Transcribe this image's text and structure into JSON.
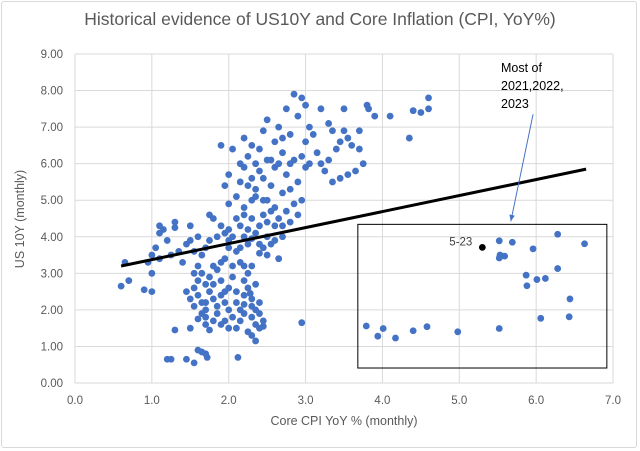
{
  "chart_data": {
    "type": "scatter",
    "title": "Historical evidence of US10Y and Core Inflation (CPI, YoY%)",
    "xlabel": "Core CPI YoY % (monthly)",
    "ylabel": "US 10Y (monthly)",
    "xlim": [
      0,
      7
    ],
    "ylim": [
      0,
      9
    ],
    "x_ticks": [
      "0.0",
      "1.0",
      "2.0",
      "3.0",
      "4.0",
      "5.0",
      "6.0",
      "7.0"
    ],
    "y_ticks": [
      "0.00",
      "1.00",
      "2.00",
      "3.00",
      "4.00",
      "5.00",
      "6.00",
      "7.00",
      "8.00",
      "9.00"
    ],
    "grid": true,
    "legend": "none",
    "colors": {
      "points": "#4472C4",
      "highlight": "#000000",
      "trendline": "#000000",
      "grid": "#d9d9d9"
    },
    "trendline": {
      "type": "linear",
      "x": [
        0.6,
        6.65
      ],
      "y": [
        3.2,
        5.85
      ]
    },
    "highlight_point": {
      "label": "5-23",
      "x": 5.3,
      "y": 3.71
    },
    "annotation": {
      "lines": [
        "Most of",
        "2021,2022,",
        "2023"
      ],
      "box": {
        "x": [
          3.68,
          6.92
        ],
        "y": [
          0.41,
          4.34
        ]
      },
      "arrow_from": [
        5.96,
        7.35
      ],
      "arrow_to": [
        5.67,
        4.42
      ]
    },
    "points": [
      [
        0.6,
        2.65
      ],
      [
        0.65,
        3.3
      ],
      [
        0.7,
        2.8
      ],
      [
        0.9,
        2.55
      ],
      [
        1.0,
        2.5
      ],
      [
        1.0,
        3.0
      ],
      [
        0.95,
        3.3
      ],
      [
        1.0,
        3.5
      ],
      [
        1.05,
        3.7
      ],
      [
        1.1,
        3.4
      ],
      [
        1.1,
        4.3
      ],
      [
        1.1,
        4.1
      ],
      [
        1.15,
        4.2
      ],
      [
        1.2,
        3.9
      ],
      [
        1.25,
        3.5
      ],
      [
        1.3,
        4.4
      ],
      [
        1.3,
        4.25
      ],
      [
        1.35,
        3.6
      ],
      [
        1.4,
        3.3
      ],
      [
        1.45,
        3.8
      ],
      [
        1.5,
        3.9
      ],
      [
        1.5,
        4.3
      ],
      [
        1.55,
        3.6
      ],
      [
        1.6,
        3.2
      ],
      [
        1.55,
        3.0
      ],
      [
        1.6,
        4.0
      ],
      [
        1.65,
        3.5
      ],
      [
        1.7,
        3.7
      ],
      [
        1.75,
        4.6
      ],
      [
        1.8,
        4.5
      ],
      [
        1.75,
        3.9
      ],
      [
        1.8,
        3.2
      ],
      [
        1.85,
        4.0
      ],
      [
        1.9,
        4.3
      ],
      [
        1.95,
        4.1
      ],
      [
        2.0,
        3.9
      ],
      [
        1.2,
        0.65
      ],
      [
        1.25,
        0.65
      ],
      [
        1.45,
        0.65
      ],
      [
        1.55,
        0.55
      ],
      [
        1.65,
        0.85
      ],
      [
        1.7,
        0.8
      ],
      [
        1.72,
        0.7
      ],
      [
        1.6,
        0.9
      ],
      [
        1.3,
        1.45
      ],
      [
        1.5,
        1.5
      ],
      [
        2.12,
        0.7
      ],
      [
        2.35,
        1.15
      ],
      [
        2.95,
        1.65
      ],
      [
        1.55,
        2.6
      ],
      [
        1.6,
        2.4
      ],
      [
        1.65,
        2.2
      ],
      [
        1.7,
        2.0
      ],
      [
        1.65,
        1.9
      ],
      [
        1.7,
        1.8
      ],
      [
        1.75,
        2.5
      ],
      [
        1.8,
        2.7
      ],
      [
        1.8,
        2.3
      ],
      [
        1.85,
        2.1
      ],
      [
        1.85,
        1.9
      ],
      [
        1.9,
        2.4
      ],
      [
        1.9,
        2.8
      ],
      [
        1.95,
        2.2
      ],
      [
        1.95,
        1.7
      ],
      [
        2.0,
        2.6
      ],
      [
        2.0,
        2.0
      ],
      [
        1.75,
        2.9
      ],
      [
        1.7,
        2.7
      ],
      [
        1.6,
        2.8
      ],
      [
        1.65,
        3.0
      ],
      [
        1.7,
        1.6
      ],
      [
        1.75,
        1.45
      ],
      [
        1.8,
        1.7
      ],
      [
        1.55,
        2.1
      ],
      [
        1.6,
        1.75
      ],
      [
        1.85,
        3.1
      ],
      [
        1.9,
        3.3
      ],
      [
        2.05,
        2.9
      ],
      [
        2.1,
        2.5
      ],
      [
        2.1,
        2.2
      ],
      [
        2.15,
        2.0
      ],
      [
        2.15,
        1.7
      ],
      [
        2.2,
        1.9
      ],
      [
        2.2,
        2.4
      ],
      [
        2.2,
        2.8
      ],
      [
        2.25,
        3.0
      ],
      [
        2.25,
        2.6
      ],
      [
        2.3,
        2.3
      ],
      [
        2.3,
        2.1
      ],
      [
        2.3,
        1.8
      ],
      [
        2.35,
        1.6
      ],
      [
        2.35,
        2.0
      ],
      [
        2.4,
        1.5
      ],
      [
        2.4,
        1.9
      ],
      [
        2.45,
        1.7
      ],
      [
        2.45,
        1.55
      ],
      [
        2.4,
        2.2
      ],
      [
        2.35,
        2.7
      ],
      [
        2.1,
        1.5
      ],
      [
        2.05,
        1.8
      ],
      [
        2.0,
        1.5
      ],
      [
        1.9,
        1.6
      ],
      [
        2.25,
        1.4
      ],
      [
        2.3,
        1.3
      ],
      [
        1.5,
        2.3
      ],
      [
        1.45,
        2.5
      ],
      [
        1.7,
        2.2
      ],
      [
        1.95,
        2.5
      ],
      [
        2.15,
        3.3
      ],
      [
        2.05,
        3.2
      ],
      [
        2.3,
        3.2
      ],
      [
        2.4,
        3.8
      ],
      [
        2.45,
        3.7
      ],
      [
        2.2,
        2.15
      ],
      [
        2.28,
        2.45
      ],
      [
        2.0,
        4.2
      ],
      [
        2.05,
        4.0
      ],
      [
        2.1,
        3.6
      ],
      [
        2.1,
        4.5
      ],
      [
        2.15,
        4.3
      ],
      [
        2.2,
        4.0
      ],
      [
        2.2,
        4.6
      ],
      [
        2.25,
        3.8
      ],
      [
        2.25,
        4.2
      ],
      [
        2.3,
        3.95
      ],
      [
        2.3,
        4.5
      ],
      [
        2.35,
        4.1
      ],
      [
        2.4,
        4.3
      ],
      [
        2.45,
        4.6
      ],
      [
        2.5,
        4.4
      ],
      [
        2.5,
        4.0
      ],
      [
        2.55,
        4.7
      ],
      [
        2.6,
        4.8
      ],
      [
        2.65,
        4.5
      ],
      [
        2.7,
        4.3
      ],
      [
        2.75,
        4.7
      ],
      [
        2.8,
        4.4
      ],
      [
        2.85,
        4.9
      ],
      [
        2.9,
        4.6
      ],
      [
        2.5,
        3.5
      ],
      [
        2.55,
        3.8
      ],
      [
        2.6,
        3.9
      ],
      [
        2.65,
        3.4
      ],
      [
        2.7,
        4.0
      ],
      [
        2.2,
        3.2
      ],
      [
        2.15,
        3.7
      ],
      [
        2.0,
        3.7
      ],
      [
        1.95,
        3.4
      ],
      [
        2.4,
        3.55
      ],
      [
        2.1,
        5.1
      ],
      [
        2.15,
        5.5
      ],
      [
        2.2,
        5.9
      ],
      [
        2.2,
        6.7
      ],
      [
        2.25,
        6.2
      ],
      [
        2.3,
        5.6
      ],
      [
        2.3,
        6.5
      ],
      [
        2.35,
        5.3
      ],
      [
        2.35,
        6.0
      ],
      [
        2.4,
        5.8
      ],
      [
        2.4,
        6.4
      ],
      [
        2.45,
        5.0
      ],
      [
        2.45,
        6.9
      ],
      [
        2.5,
        6.1
      ],
      [
        2.5,
        7.2
      ],
      [
        2.55,
        5.4
      ],
      [
        2.6,
        5.9
      ],
      [
        2.6,
        6.6
      ],
      [
        2.65,
        7.0
      ],
      [
        2.7,
        5.2
      ],
      [
        2.7,
        6.3
      ],
      [
        2.75,
        7.5
      ],
      [
        2.75,
        5.7
      ],
      [
        2.8,
        6.0
      ],
      [
        2.8,
        6.8
      ],
      [
        2.85,
        7.9
      ],
      [
        2.9,
        7.3
      ],
      [
        2.9,
        5.5
      ],
      [
        2.95,
        7.8
      ],
      [
        3.0,
        7.6
      ],
      [
        3.0,
        6.6
      ],
      [
        3.05,
        7.0
      ],
      [
        3.1,
        6.8
      ],
      [
        3.15,
        6.3
      ],
      [
        3.2,
        7.5
      ],
      [
        3.3,
        7.1
      ],
      [
        3.25,
        5.8
      ],
      [
        3.35,
        5.5
      ],
      [
        2.85,
        6.1
      ],
      [
        2.95,
        6.2
      ],
      [
        2.6,
        4.3
      ],
      [
        2.55,
        6.1
      ],
      [
        2.45,
        5.6
      ],
      [
        2.3,
        5.0
      ],
      [
        2.2,
        4.8
      ],
      [
        2.0,
        4.9
      ],
      [
        2.05,
        6.4
      ],
      [
        1.9,
        6.5
      ],
      [
        1.95,
        5.4
      ],
      [
        2.0,
        5.7
      ],
      [
        2.15,
        6.0
      ],
      [
        2.25,
        5.4
      ],
      [
        2.35,
        5.1
      ],
      [
        2.5,
        5.0
      ],
      [
        2.65,
        6.0
      ],
      [
        2.7,
        6.7
      ],
      [
        2.95,
        5.0
      ],
      [
        2.8,
        5.3
      ],
      [
        3.0,
        5.9
      ],
      [
        3.05,
        6.0
      ],
      [
        3.4,
        6.4
      ],
      [
        3.45,
        6.6
      ],
      [
        3.5,
        6.9
      ],
      [
        3.55,
        6.7
      ],
      [
        3.6,
        6.5
      ],
      [
        3.7,
        6.4
      ],
      [
        3.75,
        6.0
      ],
      [
        3.65,
        5.8
      ],
      [
        3.55,
        5.7
      ],
      [
        3.45,
        5.6
      ],
      [
        3.3,
        6.1
      ],
      [
        3.2,
        6.0
      ],
      [
        3.8,
        7.6
      ],
      [
        3.82,
        7.5
      ],
      [
        3.9,
        7.3
      ],
      [
        4.1,
        7.3
      ],
      [
        4.35,
        6.7
      ],
      [
        4.4,
        7.45
      ],
      [
        4.5,
        7.4
      ],
      [
        4.6,
        7.8
      ],
      [
        4.6,
        7.5
      ],
      [
        3.7,
        6.9
      ],
      [
        3.5,
        7.5
      ],
      [
        3.35,
        6.9
      ],
      [
        3.79,
        1.56
      ],
      [
        3.94,
        1.28
      ],
      [
        4.01,
        1.49
      ],
      [
        4.17,
        1.23
      ],
      [
        4.4,
        1.43
      ],
      [
        4.58,
        1.54
      ],
      [
        4.98,
        1.4
      ],
      [
        5.52,
        1.49
      ],
      [
        5.52,
        3.89
      ],
      [
        5.69,
        3.85
      ],
      [
        5.53,
        3.5
      ],
      [
        5.59,
        3.47
      ],
      [
        5.52,
        3.42
      ],
      [
        5.96,
        3.67
      ],
      [
        6.28,
        4.07
      ],
      [
        6.63,
        3.81
      ],
      [
        5.87,
        2.95
      ],
      [
        5.88,
        2.66
      ],
      [
        6.01,
        2.83
      ],
      [
        6.12,
        2.86
      ],
      [
        6.28,
        3.13
      ],
      [
        6.44,
        2.3
      ],
      [
        6.06,
        1.77
      ],
      [
        6.43,
        1.81
      ]
    ]
  }
}
